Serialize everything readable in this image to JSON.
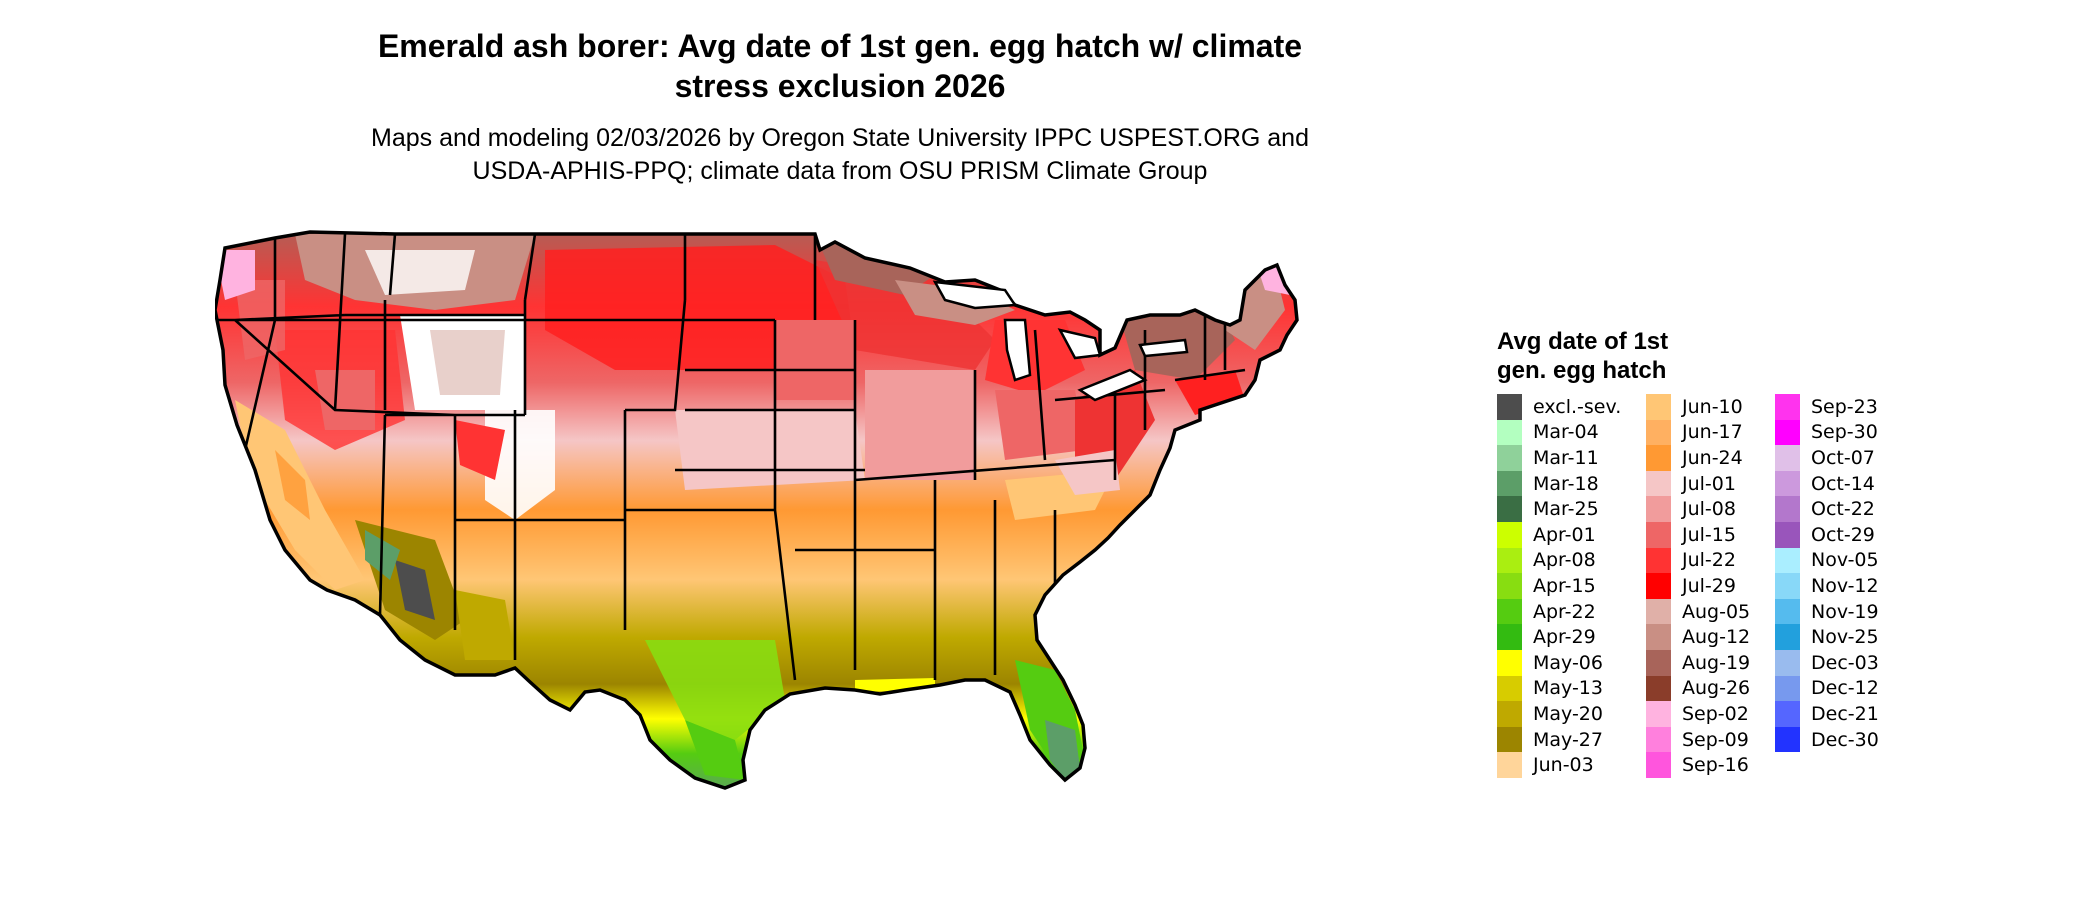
{
  "title": "Emerald ash borer: Avg date of 1st gen. egg hatch w/ climate\nstress exclusion 2026",
  "subtitle": "Maps and modeling 02/03/2026 by Oregon State University IPPC USPEST.ORG and\nUSDA-APHIS-PPQ; climate data from OSU PRISM Climate Group",
  "legend": {
    "title": "Avg date of 1st\ngen. egg hatch",
    "columns": [
      [
        {
          "label": "excl.-sev.",
          "color": "#4d4d4d"
        },
        {
          "label": "Mar-04",
          "color": "#b3ffc0"
        },
        {
          "label": "Mar-11",
          "color": "#8fd19a"
        },
        {
          "label": "Mar-18",
          "color": "#5c9e68"
        },
        {
          "label": "Mar-25",
          "color": "#3a6e44"
        },
        {
          "label": "Apr-01",
          "color": "#ccff00"
        },
        {
          "label": "Apr-08",
          "color": "#aaee11"
        },
        {
          "label": "Apr-15",
          "color": "#88dd11"
        },
        {
          "label": "Apr-22",
          "color": "#55cc11"
        },
        {
          "label": "Apr-29",
          "color": "#33bb11"
        },
        {
          "label": "May-06",
          "color": "#ffff00"
        },
        {
          "label": "May-13",
          "color": "#d7cc00"
        },
        {
          "label": "May-20",
          "color": "#bfa900"
        },
        {
          "label": "May-27",
          "color": "#9c8500"
        },
        {
          "label": "Jun-03",
          "color": "#ffd59a"
        }
      ],
      [
        {
          "label": "Jun-10",
          "color": "#ffc675"
        },
        {
          "label": "Jun-17",
          "color": "#ffb061"
        },
        {
          "label": "Jun-24",
          "color": "#ff9933"
        },
        {
          "label": "Jul-01",
          "color": "#f5c6c6"
        },
        {
          "label": "Jul-08",
          "color": "#f19c9c"
        },
        {
          "label": "Jul-15",
          "color": "#ee6666"
        },
        {
          "label": "Jul-22",
          "color": "#ff3333"
        },
        {
          "label": "Jul-29",
          "color": "#ff0000"
        },
        {
          "label": "Aug-05",
          "color": "#e0b0a8"
        },
        {
          "label": "Aug-12",
          "color": "#c98f84"
        },
        {
          "label": "Aug-19",
          "color": "#a8645a"
        },
        {
          "label": "Aug-26",
          "color": "#8a3d2a"
        },
        {
          "label": "Sep-02",
          "color": "#ffb3e0"
        },
        {
          "label": "Sep-09",
          "color": "#ff80dd"
        },
        {
          "label": "Sep-16",
          "color": "#ff55dd"
        }
      ],
      [
        {
          "label": "Sep-23",
          "color": "#ff33ee"
        },
        {
          "label": "Sep-30",
          "color": "#ff00ff"
        },
        {
          "label": "Oct-07",
          "color": "#e0c0e8"
        },
        {
          "label": "Oct-14",
          "color": "#cc99dd"
        },
        {
          "label": "Oct-22",
          "color": "#b377cc"
        },
        {
          "label": "Oct-29",
          "color": "#9955bb"
        },
        {
          "label": "Nov-05",
          "color": "#aaeeff"
        },
        {
          "label": "Nov-12",
          "color": "#88d8f8"
        },
        {
          "label": "Nov-19",
          "color": "#55bbee"
        },
        {
          "label": "Nov-25",
          "color": "#22a0dd"
        },
        {
          "label": "Dec-03",
          "color": "#99bbee"
        },
        {
          "label": "Dec-12",
          "color": "#7799ee"
        },
        {
          "label": "Dec-21",
          "color": "#5566ff"
        },
        {
          "label": "Dec-30",
          "color": "#2233ff"
        }
      ]
    ]
  }
}
